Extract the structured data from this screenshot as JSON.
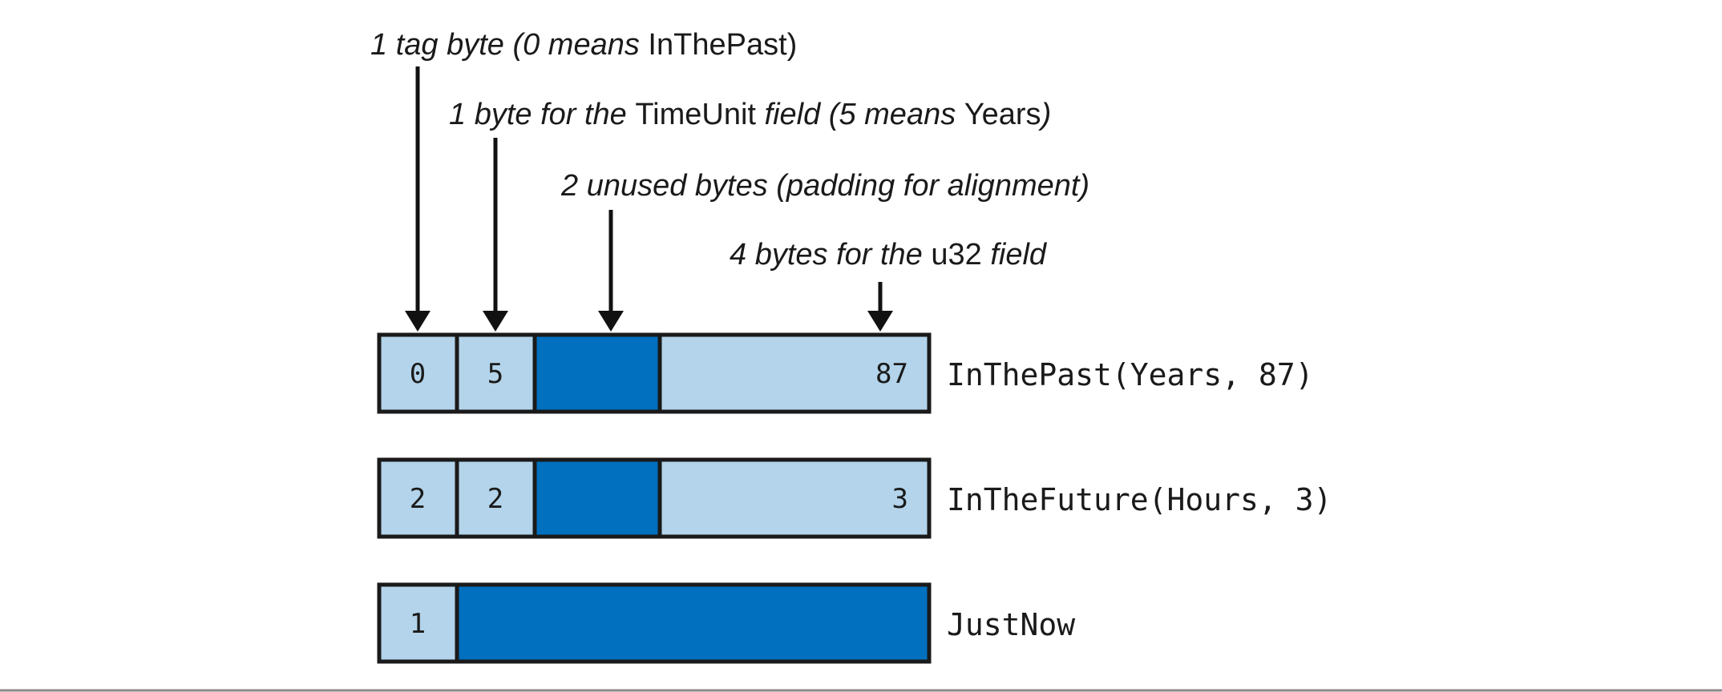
{
  "colors": {
    "light_byte": "#b3d4ea",
    "dark_byte": "#0070bf",
    "border": "#1a1a1a",
    "background": "#ffffff"
  },
  "annotations": [
    {
      "parts": [
        {
          "t": "1 tag byte (0 means ",
          "i": true
        },
        {
          "t": "InThePast",
          "i": false
        },
        {
          "t": ")",
          "i": false
        }
      ]
    },
    {
      "parts": [
        {
          "t": "1 byte for the ",
          "i": true
        },
        {
          "t": "TimeUnit",
          "i": false
        },
        {
          "t": " field (5 means ",
          "i": true
        },
        {
          "t": "Years",
          "i": false
        },
        {
          "t": ")",
          "i": true
        }
      ]
    },
    {
      "parts": [
        {
          "t": "2 unused bytes (padding for alignment)",
          "i": true
        }
      ]
    },
    {
      "parts": [
        {
          "t": "4 bytes for the ",
          "i": true
        },
        {
          "t": "u32",
          "i": false
        },
        {
          "t": " field",
          "i": true
        }
      ]
    }
  ],
  "rows": [
    {
      "label": "InThePast(Years, 87)",
      "cells": [
        {
          "value": "0",
          "fill": "light"
        },
        {
          "value": "5",
          "fill": "light"
        },
        {
          "value": "",
          "fill": "dark"
        },
        {
          "value": "87",
          "fill": "light"
        }
      ]
    },
    {
      "label": "InTheFuture(Hours, 3)",
      "cells": [
        {
          "value": "2",
          "fill": "light"
        },
        {
          "value": "2",
          "fill": "light"
        },
        {
          "value": "",
          "fill": "dark"
        },
        {
          "value": "3",
          "fill": "light"
        }
      ]
    },
    {
      "label": "JustNow",
      "cells": [
        {
          "value": "1",
          "fill": "light"
        },
        {
          "value": "",
          "fill": "dark"
        }
      ]
    }
  ]
}
